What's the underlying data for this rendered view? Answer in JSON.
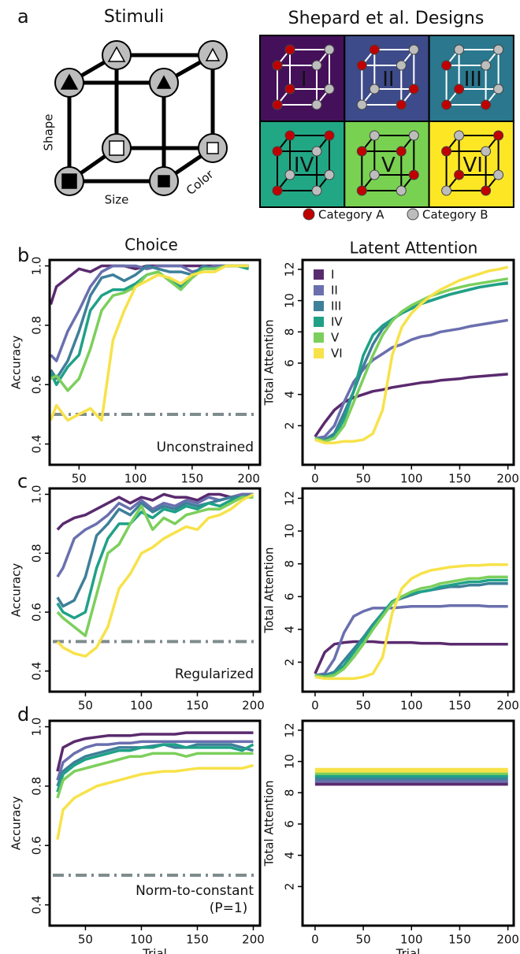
{
  "panel_labels": [
    "a",
    "b",
    "c",
    "d"
  ],
  "stimuli": {
    "title": "Stimuli",
    "dimensions": [
      "Shape",
      "Size",
      "Color"
    ]
  },
  "designs": {
    "title": "Shepard et al. Designs",
    "types": [
      "I",
      "II",
      "III",
      "IV",
      "V",
      "VI"
    ],
    "colors": [
      "#45105a",
      "#3e4b8a",
      "#2a778e",
      "#22a785",
      "#79d151",
      "#fde725"
    ],
    "legend": [
      {
        "name": "Category A",
        "color": "#c00000"
      },
      {
        "name": "Category B",
        "color": "#bdbdbd"
      }
    ]
  },
  "column_titles": [
    "Choice",
    "Latent Attention"
  ],
  "chart_data": [
    {
      "type": "line",
      "ylabel": "Accuracy",
      "annotation": [
        "Unconstrained"
      ],
      "hline": 0.5,
      "x": [
        25,
        30,
        40,
        50,
        60,
        70,
        80,
        90,
        100,
        110,
        120,
        130,
        140,
        150,
        160,
        170,
        180,
        190,
        200
      ],
      "xlim": [
        24,
        210
      ],
      "xticks": [
        50,
        100,
        150,
        200
      ],
      "ylim": [
        0.33,
        1.02
      ],
      "yticks": [
        0.4,
        0.6,
        0.8,
        {
          "value": 1,
          "label": "1.0"
        }
      ],
      "legend": false,
      "series": [
        {
          "name": "I",
          "color": "#5a2a6e",
          "values": [
            0.87,
            0.93,
            0.96,
            0.99,
            0.98,
            1,
            1,
            1,
            0.99,
            1,
            1,
            1,
            1,
            1,
            1,
            1,
            1,
            1,
            1
          ]
        },
        {
          "name": "II",
          "color": "#6a6fae",
          "values": [
            0.7,
            0.68,
            0.78,
            0.85,
            0.93,
            0.98,
            1,
            1,
            1,
            0.99,
            1,
            1,
            1,
            0.98,
            0.99,
            1,
            1,
            1,
            1
          ]
        },
        {
          "name": "III",
          "color": "#3e7f9a",
          "values": [
            0.65,
            0.62,
            0.68,
            0.78,
            0.9,
            0.96,
            0.97,
            0.95,
            0.97,
            1,
            0.99,
            0.98,
            0.98,
            0.97,
            1,
            0.99,
            1,
            1,
            1
          ]
        },
        {
          "name": "IV",
          "color": "#1fa187",
          "values": [
            0.64,
            0.6,
            0.66,
            0.7,
            0.85,
            0.9,
            0.92,
            0.92,
            0.94,
            0.97,
            0.98,
            0.95,
            0.93,
            0.97,
            0.99,
            0.99,
            1,
            1,
            0.99
          ]
        },
        {
          "name": "V",
          "color": "#7ccf5c",
          "values": [
            0.62,
            0.63,
            0.58,
            0.62,
            0.72,
            0.85,
            0.9,
            0.91,
            0.93,
            0.97,
            0.98,
            0.95,
            0.92,
            0.96,
            0.99,
            0.99,
            1,
            1,
            1
          ]
        },
        {
          "name": "VI",
          "color": "#f7e24a",
          "values": [
            0.48,
            0.53,
            0.48,
            0.5,
            0.52,
            0.48,
            0.75,
            0.85,
            0.93,
            0.95,
            0.97,
            0.96,
            0.94,
            0.97,
            0.98,
            0.98,
            1,
            1,
            1
          ]
        }
      ]
    },
    {
      "type": "line",
      "ylabel": "Total Attention",
      "legend": "top-left",
      "x": [
        0,
        10,
        20,
        30,
        40,
        50,
        60,
        70,
        80,
        90,
        100,
        110,
        120,
        130,
        140,
        150,
        160,
        170,
        180,
        190,
        200
      ],
      "xlim": [
        -13,
        206
      ],
      "xticks": [
        0,
        50,
        100,
        150,
        200
      ],
      "ylim": [
        -0.5,
        12.6
      ],
      "yticks": [
        2,
        4,
        6,
        8,
        10,
        12
      ],
      "series": [
        {
          "name": "I",
          "color": "#5a2a6e",
          "values": [
            1.3,
            2.2,
            3,
            3.5,
            3.8,
            4,
            4.2,
            4.3,
            4.45,
            4.55,
            4.65,
            4.75,
            4.8,
            4.9,
            4.95,
            5,
            5.1,
            5.15,
            5.2,
            5.25,
            5.3
          ]
        },
        {
          "name": "II",
          "color": "#6a6fae",
          "values": [
            1.2,
            1.3,
            2,
            3.5,
            4.8,
            5.6,
            6.2,
            6.6,
            7,
            7.2,
            7.5,
            7.7,
            7.8,
            8,
            8.1,
            8.2,
            8.35,
            8.45,
            8.55,
            8.65,
            8.75
          ]
        },
        {
          "name": "III",
          "color": "#3e7f9a",
          "values": [
            1.2,
            1.1,
            1.5,
            2.8,
            4.2,
            5.8,
            7.2,
            8.2,
            8.8,
            9.2,
            9.5,
            9.8,
            10,
            10.2,
            10.4,
            10.55,
            10.7,
            10.85,
            10.95,
            11.05,
            11.15
          ]
        },
        {
          "name": "IV",
          "color": "#1fa187",
          "values": [
            1.1,
            1,
            1.3,
            2.4,
            4.2,
            6.5,
            7.8,
            8.4,
            8.8,
            9.2,
            9.5,
            9.8,
            10,
            10.2,
            10.4,
            10.55,
            10.7,
            10.85,
            10.95,
            11.05,
            11.1
          ]
        },
        {
          "name": "V",
          "color": "#7ccf5c",
          "values": [
            1.2,
            1,
            1.2,
            2,
            3.5,
            5,
            6.5,
            7.8,
            8.7,
            9.3,
            9.7,
            10,
            10.3,
            10.5,
            10.7,
            10.85,
            11,
            11.1,
            11.2,
            11.3,
            11.4
          ]
        },
        {
          "name": "VI",
          "color": "#f7e24a",
          "values": [
            1.1,
            0.9,
            0.9,
            1,
            1,
            1.1,
            1.5,
            3,
            6.5,
            8.3,
            9.2,
            9.8,
            10.3,
            10.7,
            11,
            11.3,
            11.5,
            11.7,
            11.9,
            12,
            12.15
          ]
        }
      ]
    },
    {
      "type": "line",
      "ylabel": "Accuracy",
      "annotation": [
        "Regularized"
      ],
      "hline": 0.5,
      "x": [
        25,
        30,
        40,
        50,
        60,
        70,
        80,
        90,
        100,
        110,
        120,
        130,
        140,
        150,
        160,
        170,
        180,
        190,
        200
      ],
      "xlim": [
        18,
        206
      ],
      "xticks": [
        50,
        100,
        150,
        200
      ],
      "ylim": [
        0.33,
        1.02
      ],
      "yticks": [
        0.4,
        0.6,
        0.8,
        {
          "value": 1,
          "label": "1.0"
        }
      ],
      "legend": false,
      "series": [
        {
          "name": "I",
          "color": "#5a2a6e",
          "values": [
            0.88,
            0.9,
            0.92,
            0.93,
            0.95,
            0.97,
            0.99,
            0.97,
            0.99,
            0.98,
            1,
            0.99,
            0.99,
            0.98,
            1,
            1,
            0.99,
            1,
            1
          ]
        },
        {
          "name": "II",
          "color": "#6a6fae",
          "values": [
            0.72,
            0.75,
            0.85,
            0.88,
            0.9,
            0.93,
            0.97,
            0.95,
            0.98,
            0.95,
            0.97,
            0.96,
            0.98,
            0.97,
            0.99,
            0.98,
            0.99,
            1,
            1
          ]
        },
        {
          "name": "III",
          "color": "#3e7f9a",
          "values": [
            0.65,
            0.62,
            0.64,
            0.72,
            0.86,
            0.9,
            0.95,
            0.93,
            0.97,
            0.94,
            0.96,
            0.95,
            0.97,
            0.96,
            0.97,
            0.98,
            0.99,
            0.99,
            1
          ]
        },
        {
          "name": "IV",
          "color": "#1fa187",
          "values": [
            0.63,
            0.6,
            0.58,
            0.6,
            0.75,
            0.85,
            0.9,
            0.9,
            0.94,
            0.92,
            0.95,
            0.94,
            0.96,
            0.95,
            0.97,
            0.96,
            0.98,
            0.99,
            0.99
          ]
        },
        {
          "name": "V",
          "color": "#7ccf5c",
          "values": [
            0.6,
            0.58,
            0.55,
            0.52,
            0.66,
            0.8,
            0.83,
            0.9,
            0.96,
            0.88,
            0.92,
            0.9,
            0.93,
            0.94,
            0.95,
            0.95,
            0.97,
            0.99,
            0.99
          ]
        },
        {
          "name": "VI",
          "color": "#f7e24a",
          "values": [
            0.5,
            0.48,
            0.46,
            0.45,
            0.48,
            0.55,
            0.68,
            0.73,
            0.8,
            0.82,
            0.85,
            0.87,
            0.89,
            0.88,
            0.92,
            0.93,
            0.95,
            0.98,
            1
          ]
        }
      ]
    },
    {
      "type": "line",
      "ylabel": "Total Attention",
      "legend": false,
      "x": [
        0,
        10,
        20,
        30,
        40,
        50,
        60,
        70,
        80,
        90,
        100,
        110,
        120,
        130,
        140,
        150,
        160,
        170,
        180,
        190,
        200
      ],
      "xlim": [
        -13,
        206
      ],
      "xticks": [
        0,
        50,
        100,
        150,
        200
      ],
      "ylim": [
        0.2,
        12.6
      ],
      "yticks": [
        2,
        4,
        6,
        8,
        10,
        12
      ],
      "series": [
        {
          "name": "I",
          "color": "#5a2a6e",
          "values": [
            1.3,
            2.6,
            3.1,
            3.2,
            3.25,
            3.25,
            3.25,
            3.2,
            3.2,
            3.2,
            3.2,
            3.15,
            3.15,
            3.15,
            3.1,
            3.1,
            3.1,
            3.1,
            3.1,
            3.1,
            3.1
          ]
        },
        {
          "name": "II",
          "color": "#6a6fae",
          "values": [
            1.2,
            1.3,
            2.2,
            3.8,
            4.8,
            5.1,
            5.3,
            5.3,
            5.3,
            5.35,
            5.4,
            5.4,
            5.4,
            5.4,
            5.45,
            5.45,
            5.45,
            5.45,
            5.4,
            5.4,
            5.4
          ]
        },
        {
          "name": "III",
          "color": "#3e7f9a",
          "values": [
            1.2,
            1.2,
            1.4,
            2.1,
            2.8,
            3.5,
            4.3,
            5,
            5.7,
            5.9,
            6.1,
            6.3,
            6.4,
            6.5,
            6.6,
            6.6,
            6.7,
            6.7,
            6.8,
            6.8,
            6.8
          ]
        },
        {
          "name": "IV",
          "color": "#1fa187",
          "values": [
            1.2,
            1.1,
            1.3,
            1.8,
            2.6,
            3.4,
            4.2,
            5,
            5.7,
            6,
            6.2,
            6.3,
            6.4,
            6.6,
            6.7,
            6.8,
            6.9,
            6.9,
            7,
            7,
            7
          ]
        },
        {
          "name": "V",
          "color": "#7ccf5c",
          "values": [
            1.2,
            1.1,
            1.2,
            1.6,
            2.3,
            3.1,
            4,
            4.8,
            5.6,
            6,
            6.3,
            6.5,
            6.6,
            6.8,
            6.9,
            7,
            7.1,
            7.1,
            7.2,
            7.2,
            7.2
          ]
        },
        {
          "name": "VI",
          "color": "#f7e24a",
          "values": [
            1.1,
            1,
            1,
            1,
            1,
            1.1,
            1.3,
            2.3,
            5,
            6.5,
            7.1,
            7.4,
            7.6,
            7.7,
            7.8,
            7.85,
            7.9,
            7.9,
            7.95,
            7.95,
            7.95
          ]
        }
      ]
    },
    {
      "type": "line",
      "ylabel": "Accuracy",
      "xlabel": "Trial",
      "annotation": [
        "Norm-to-constant",
        "(P=1)"
      ],
      "hline": 0.5,
      "x": [
        25,
        30,
        40,
        50,
        60,
        70,
        80,
        90,
        100,
        110,
        120,
        130,
        140,
        150,
        160,
        170,
        180,
        190,
        200
      ],
      "xlim": [
        18,
        206
      ],
      "xticks": [
        50,
        100,
        150,
        200
      ],
      "ylim": [
        0.33,
        1.02
      ],
      "yticks": [
        0.4,
        0.6,
        0.8,
        {
          "value": 1,
          "label": "1.0"
        }
      ],
      "legend": false,
      "series": [
        {
          "name": "I",
          "color": "#5a2a6e",
          "values": [
            0.85,
            0.93,
            0.95,
            0.96,
            0.965,
            0.97,
            0.97,
            0.97,
            0.975,
            0.975,
            0.975,
            0.975,
            0.98,
            0.98,
            0.98,
            0.98,
            0.98,
            0.98,
            0.98
          ]
        },
        {
          "name": "II",
          "color": "#6a6fae",
          "values": [
            0.82,
            0.88,
            0.91,
            0.93,
            0.94,
            0.94,
            0.945,
            0.945,
            0.95,
            0.95,
            0.95,
            0.95,
            0.95,
            0.95,
            0.95,
            0.95,
            0.95,
            0.95,
            0.95
          ]
        },
        {
          "name": "III",
          "color": "#3e7f9a",
          "values": [
            0.8,
            0.85,
            0.88,
            0.9,
            0.91,
            0.92,
            0.93,
            0.93,
            0.93,
            0.935,
            0.94,
            0.93,
            0.93,
            0.94,
            0.94,
            0.94,
            0.94,
            0.93,
            0.92
          ]
        },
        {
          "name": "IV",
          "color": "#1fa187",
          "values": [
            0.78,
            0.84,
            0.87,
            0.89,
            0.9,
            0.91,
            0.92,
            0.92,
            0.93,
            0.93,
            0.94,
            0.94,
            0.93,
            0.93,
            0.93,
            0.93,
            0.93,
            0.92,
            0.94
          ]
        },
        {
          "name": "V",
          "color": "#7ccf5c",
          "values": [
            0.76,
            0.82,
            0.85,
            0.86,
            0.87,
            0.88,
            0.89,
            0.9,
            0.9,
            0.91,
            0.91,
            0.91,
            0.9,
            0.91,
            0.91,
            0.91,
            0.91,
            0.91,
            0.91
          ]
        },
        {
          "name": "VI",
          "color": "#f7e24a",
          "values": [
            0.62,
            0.72,
            0.76,
            0.78,
            0.8,
            0.81,
            0.82,
            0.83,
            0.84,
            0.845,
            0.85,
            0.85,
            0.855,
            0.86,
            0.86,
            0.86,
            0.86,
            0.86,
            0.87
          ]
        }
      ]
    },
    {
      "type": "line",
      "ylabel": "Total Attention",
      "xlabel": "Trial",
      "legend": false,
      "x": [
        0,
        200
      ],
      "xlim": [
        -13,
        206
      ],
      "xticks": [
        0,
        50,
        100,
        150,
        200
      ],
      "ylim": [
        -0.5,
        12.6
      ],
      "yticks": [
        2,
        4,
        6,
        8,
        10,
        12
      ],
      "series": [
        {
          "name": "I",
          "color": "#5a2a6e",
          "values": [
            8.6,
            8.6
          ]
        },
        {
          "name": "II",
          "color": "#6a6fae",
          "values": [
            8.78,
            8.78
          ]
        },
        {
          "name": "III",
          "color": "#3e7f9a",
          "values": [
            8.96,
            8.96
          ]
        },
        {
          "name": "IV",
          "color": "#1fa187",
          "values": [
            9.12,
            9.12
          ]
        },
        {
          "name": "V",
          "color": "#7ccf5c",
          "values": [
            9.28,
            9.28
          ]
        },
        {
          "name": "VI",
          "color": "#f7e24a",
          "values": [
            9.44,
            9.44
          ]
        }
      ]
    }
  ]
}
